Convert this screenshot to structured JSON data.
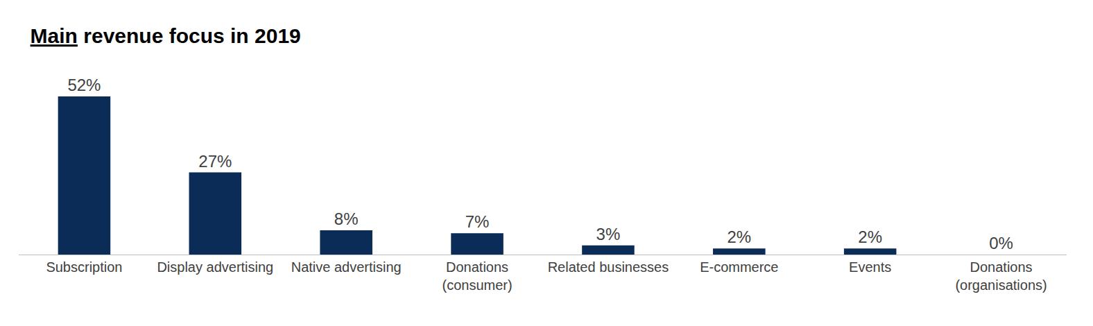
{
  "chart_data": {
    "type": "bar",
    "title": "Main revenue focus in 2019",
    "categories": [
      "Subscription",
      "Display advertising",
      "Native advertising",
      "Donations (consumer)",
      "Related businesses",
      "E-commerce",
      "Events",
      "Donations (organisations)"
    ],
    "values": [
      52,
      27,
      8,
      7,
      3,
      2,
      2,
      0
    ],
    "value_labels": [
      "52%",
      "27%",
      "8%",
      "7%",
      "3%",
      "2%",
      "2%",
      "0%"
    ],
    "color": "#0b2c57",
    "ylim": [
      0,
      52
    ],
    "data_labels": true,
    "tick_labels": "x",
    "grid": false
  }
}
